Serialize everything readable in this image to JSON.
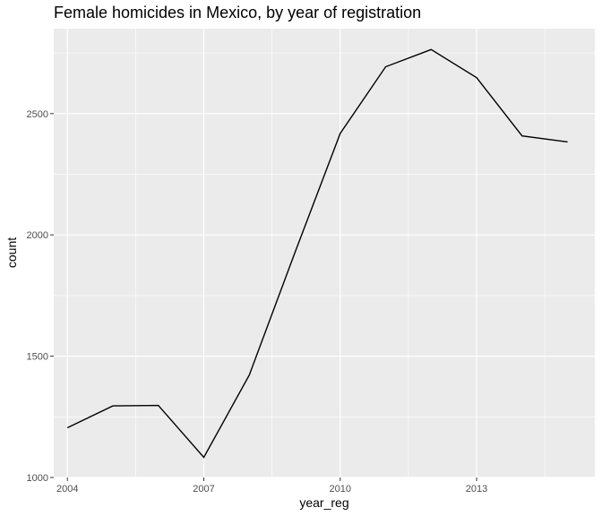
{
  "chart_data": {
    "type": "line",
    "title": "Female homicides in Mexico, by year of registration",
    "xlabel": "year_reg",
    "ylabel": "count",
    "x": [
      2004,
      2005,
      2006,
      2007,
      2008,
      2009,
      2010,
      2011,
      2012,
      2013,
      2014,
      2015
    ],
    "series": [
      {
        "values": [
          1205,
          1295,
          1297,
          1083,
          1422,
          1925,
          2418,
          2693,
          2764,
          2648,
          2408,
          2383
        ]
      }
    ],
    "xlim": [
      2003.7,
      2015.6
    ],
    "ylim": [
      1000,
      2850
    ],
    "x_ticks": [
      2004,
      2007,
      2010,
      2013
    ],
    "x_minor": [
      2005.5,
      2008.5,
      2011.5,
      2014.5
    ],
    "y_ticks": [
      1000,
      1500,
      2000,
      2500
    ],
    "y_minor": [
      1250,
      1750,
      2250,
      2750
    ],
    "x_tick_labels": [
      "2004",
      "2007",
      "2010",
      "2013"
    ],
    "y_tick_labels": [
      "1000",
      "1500",
      "2000",
      "2500"
    ],
    "grid": true,
    "colors": {
      "panel": "#EBEBEB",
      "grid": "#FFFFFF",
      "line": "#000000",
      "tick_text": "#4D4D4D"
    }
  }
}
